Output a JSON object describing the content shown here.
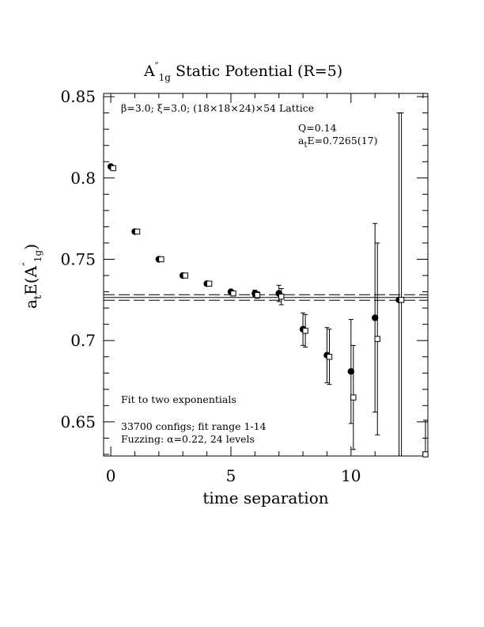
{
  "chart_data": {
    "type": "scatter",
    "title_main": "A",
    "title_prime": "″",
    "title_sub": "1g",
    "title_rest": " Static Potential (R=5)",
    "xlabel": "time separation",
    "ylabel_a": "a",
    "ylabel_t": "t",
    "ylabel_E": "E(A",
    "ylabel_prime": "″",
    "ylabel_sub": "1g",
    "ylabel_close": ")",
    "xlim": [
      -0.3,
      13.2
    ],
    "ylim": [
      0.629,
      0.852
    ],
    "xticks": [
      0,
      5,
      10
    ],
    "xtick_labels": [
      "0",
      "5",
      "10"
    ],
    "yticks": [
      0.65,
      0.7,
      0.75,
      0.8,
      0.85
    ],
    "ytick_labels": [
      "0.65",
      "0.7",
      "0.75",
      "0.8",
      "0.85"
    ],
    "annotations": {
      "lattice": "β=3.0; ξ=3.0; (18×18×24)×54 Lattice",
      "q": "Q=0.14",
      "energy_a": "a",
      "energy_t": "t",
      "energy_rest": "E=0.7265(17)",
      "fit": "Fit to two exponentials",
      "configs": "33700 configs; fit range 1-14",
      "fuzzing": "Fuzzing: α=0.22, 24 levels"
    },
    "fit_band": {
      "center": 0.7265,
      "error": 0.0017,
      "from": -0.3,
      "to": 13.2
    },
    "series": [
      {
        "marker": "filled-circle",
        "points": [
          {
            "x": 0,
            "y": 0.807,
            "err": 0.0
          },
          {
            "x": 1,
            "y": 0.767,
            "err": 0.0
          },
          {
            "x": 2,
            "y": 0.75,
            "err": 0.0
          },
          {
            "x": 3,
            "y": 0.74,
            "err": 0.0
          },
          {
            "x": 4,
            "y": 0.735,
            "err": 0.0
          },
          {
            "x": 5,
            "y": 0.73,
            "err": 0.0
          },
          {
            "x": 6,
            "y": 0.729,
            "err": 0.002
          },
          {
            "x": 7,
            "y": 0.729,
            "err": 0.005
          },
          {
            "x": 8,
            "y": 0.707,
            "err": 0.01
          },
          {
            "x": 9,
            "y": 0.691,
            "err": 0.017
          },
          {
            "x": 10,
            "y": 0.681,
            "err": 0.032
          },
          {
            "x": 11,
            "y": 0.714,
            "err": 0.058
          },
          {
            "x": 12,
            "y": 0.725,
            "err": 0.115
          }
        ]
      },
      {
        "marker": "open-square",
        "points": [
          {
            "x": 0.1,
            "y": 0.806,
            "err": 0.0
          },
          {
            "x": 1.1,
            "y": 0.767,
            "err": 0.0
          },
          {
            "x": 2.1,
            "y": 0.75,
            "err": 0.0
          },
          {
            "x": 3.1,
            "y": 0.74,
            "err": 0.0
          },
          {
            "x": 4.1,
            "y": 0.735,
            "err": 0.0
          },
          {
            "x": 5.1,
            "y": 0.729,
            "err": 0.001
          },
          {
            "x": 6.1,
            "y": 0.728,
            "err": 0.002
          },
          {
            "x": 7.1,
            "y": 0.727,
            "err": 0.005
          },
          {
            "x": 8.1,
            "y": 0.706,
            "err": 0.01
          },
          {
            "x": 9.1,
            "y": 0.69,
            "err": 0.017
          },
          {
            "x": 10.1,
            "y": 0.665,
            "err": 0.032
          },
          {
            "x": 11.1,
            "y": 0.701,
            "err": 0.059
          },
          {
            "x": 12.1,
            "y": 0.725,
            "err": 0.115
          },
          {
            "x": 13.1,
            "y": 0.63,
            "err": 0.021
          }
        ]
      }
    ]
  }
}
